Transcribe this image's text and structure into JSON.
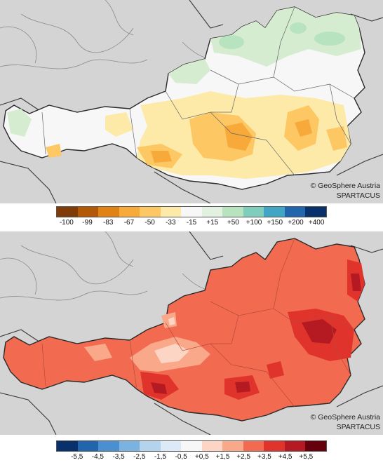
{
  "top_map": {
    "credit_line1": "© GeoSphere Austria",
    "credit_line2": "SPARTACUS",
    "legend": {
      "colors": [
        "#7f3b08",
        "#b35806",
        "#e08214",
        "#f7a93a",
        "#fdc863",
        "#fdeaa8",
        "#f7f7f7",
        "#e3f2e0",
        "#b8e3bf",
        "#7fcdbb",
        "#41a6c4",
        "#2166ac",
        "#08306b"
      ],
      "labels": [
        "-100",
        "-99",
        "-83",
        "-67",
        "-50",
        "-33",
        "-15",
        "+15",
        "+50",
        "+100",
        "+150",
        "+200",
        "+400"
      ]
    }
  },
  "bottom_map": {
    "credit_line1": "© GeoSphere Austria",
    "credit_line2": "SPARTACUS",
    "legend": {
      "colors": [
        "#08306b",
        "#2166ac",
        "#4a8fcf",
        "#7ab3e0",
        "#b4d4ee",
        "#dceaf7",
        "#f7f7f7",
        "#fdd5c4",
        "#f9a98a",
        "#f26a4f",
        "#e0332c",
        "#b51a22",
        "#67000d"
      ],
      "labels": [
        "-5,5",
        "-4,5",
        "-3,5",
        "-2,5",
        "-1,5",
        "-0,5",
        "+0,5",
        "+1,5",
        "+2,5",
        "+3,5",
        "+4,5",
        "+5,5"
      ]
    }
  }
}
